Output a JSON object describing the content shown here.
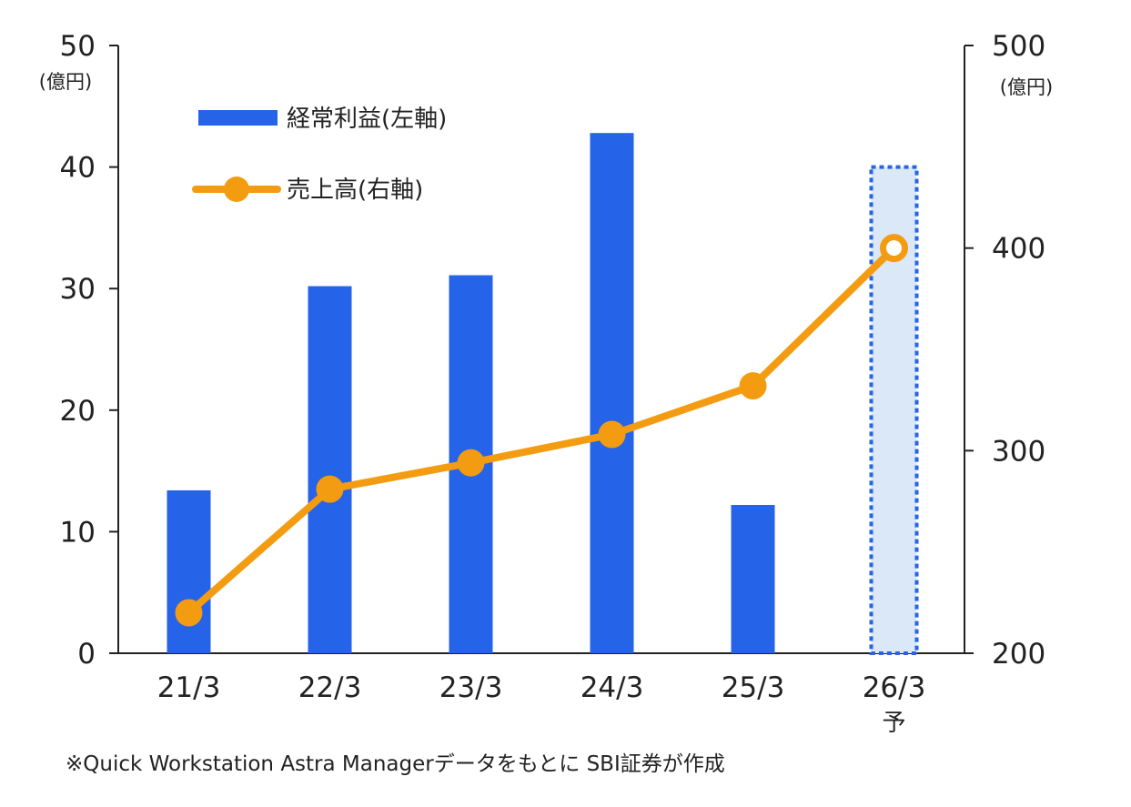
{
  "chart_data": {
    "type": "bar+line",
    "categories": [
      "21/3",
      "22/3",
      "23/3",
      "24/3",
      "25/3",
      "26/3"
    ],
    "category_sublabels": [
      "",
      "",
      "",
      "",
      "",
      "予"
    ],
    "forecast_index": 5,
    "series": [
      {
        "name": "経常利益(左軸)",
        "type": "bar",
        "axis": "left",
        "color": "#2563e8",
        "values": [
          13.4,
          30.2,
          31.1,
          42.8,
          12.2,
          40.0
        ]
      },
      {
        "name": "売上高(右軸)",
        "type": "line",
        "axis": "right",
        "color": "#f39c12",
        "values": [
          220,
          281,
          294,
          308,
          332,
          400
        ]
      }
    ],
    "left_axis": {
      "unit": "(億円)",
      "ylim": [
        0,
        50
      ],
      "ticks": [
        0,
        10,
        20,
        30,
        40,
        50
      ]
    },
    "right_axis": {
      "unit": "(億円)",
      "ylim": [
        200,
        500
      ],
      "ticks": [
        200,
        300,
        400,
        500
      ]
    },
    "forecast_fill": "#dbe8f8",
    "grid": false,
    "legend_position": "top-left"
  },
  "footnote": "※Quick Workstation Astra Managerデータをもとに SBI証券が作成"
}
